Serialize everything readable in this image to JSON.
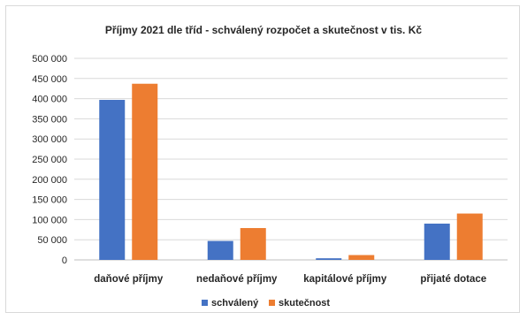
{
  "chart_data": {
    "type": "bar",
    "title": "Příjmy 2021 dle tříd - schválený rozpočet a skutečnost v tis. Kč",
    "categories": [
      "daňové příjmy",
      "nedaňové příjmy",
      "kapitálové příjmy",
      "přijaté dotace"
    ],
    "series": [
      {
        "name": "schválený",
        "values": [
          397000,
          47000,
          4000,
          90000
        ],
        "color": "#4472c4"
      },
      {
        "name": "skutečnost",
        "values": [
          437000,
          79000,
          12000,
          115000
        ],
        "color": "#ed7d31"
      }
    ],
    "ylim": [
      0,
      500000
    ],
    "yticks": [
      "0",
      "50 000",
      "100 000",
      "150 000",
      "200 000",
      "250 000",
      "300 000",
      "350 000",
      "400 000",
      "450 000",
      "500 000"
    ],
    "ystep": 50000,
    "grid": true,
    "legend_position": "bottom"
  }
}
